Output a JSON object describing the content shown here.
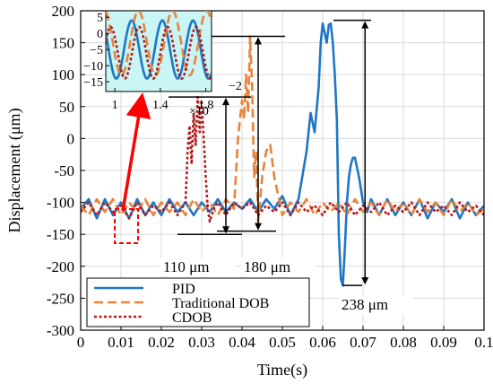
{
  "chart_data": {
    "type": "line",
    "xlabel": "Time(s)",
    "ylabel": "Displacement (μm)",
    "xlim": [
      0,
      0.1
    ],
    "ylim": [
      -300,
      200
    ],
    "xticks": [
      "0",
      "0.01",
      "0.02",
      "0.03",
      "0.04",
      "0.05",
      "0.06",
      "0.07",
      "0.08",
      "0.09",
      "0.1"
    ],
    "yticks": [
      "200",
      "150",
      "100",
      "50",
      "0",
      "-50",
      "-100",
      "-150",
      "-200",
      "-250",
      "-300"
    ],
    "ytick_values": [
      200,
      150,
      100,
      50,
      0,
      -50,
      -100,
      -150,
      -200,
      -250,
      -300
    ],
    "grid": true,
    "legend_position": "bottom-left",
    "series": [
      {
        "name": "PID",
        "color": "#1f77c4",
        "dash": "solid",
        "x": [
          0.0,
          0.002,
          0.004,
          0.006,
          0.008,
          0.01,
          0.012,
          0.014,
          0.016,
          0.018,
          0.02,
          0.022,
          0.024,
          0.026,
          0.028,
          0.03,
          0.032,
          0.034,
          0.036,
          0.038,
          0.04,
          0.042,
          0.044,
          0.046,
          0.048,
          0.05,
          0.052,
          0.054,
          0.056,
          0.057,
          0.058,
          0.059,
          0.0595,
          0.06,
          0.0605,
          0.061,
          0.0615,
          0.062,
          0.0625,
          0.063,
          0.0635,
          0.064,
          0.0645,
          0.065,
          0.0655,
          0.066,
          0.0665,
          0.067,
          0.0675,
          0.068,
          0.069,
          0.07,
          0.071,
          0.072,
          0.074,
          0.076,
          0.078,
          0.08,
          0.082,
          0.084,
          0.086,
          0.088,
          0.09,
          0.092,
          0.094,
          0.096,
          0.098,
          0.1
        ],
        "y": [
          -110,
          -95,
          -125,
          -95,
          -120,
          -100,
          -125,
          -95,
          -120,
          -100,
          -120,
          -95,
          -115,
          -100,
          -120,
          -100,
          -115,
          -95,
          -115,
          -100,
          -110,
          -95,
          -115,
          -95,
          -110,
          -90,
          -120,
          -95,
          -20,
          40,
          10,
          80,
          150,
          180,
          165,
          150,
          178,
          180,
          150,
          100,
          30,
          -150,
          -220,
          -230,
          -170,
          -100,
          -60,
          -40,
          -30,
          -30,
          -60,
          -100,
          -115,
          -95,
          -120,
          -95,
          -120,
          -100,
          -120,
          -95,
          -125,
          -100,
          -115,
          -95,
          -125,
          -100,
          -120,
          -105
        ]
      },
      {
        "name": "Traditional DOB",
        "color": "#e8843a",
        "dash": "dashed",
        "x": [
          0.0,
          0.002,
          0.004,
          0.006,
          0.008,
          0.01,
          0.012,
          0.014,
          0.016,
          0.018,
          0.02,
          0.022,
          0.024,
          0.026,
          0.028,
          0.03,
          0.032,
          0.034,
          0.036,
          0.038,
          0.039,
          0.04,
          0.0405,
          0.041,
          0.0415,
          0.042,
          0.0425,
          0.043,
          0.0435,
          0.044,
          0.045,
          0.046,
          0.047,
          0.048,
          0.05,
          0.052,
          0.054,
          0.056,
          0.058,
          0.06,
          0.062,
          0.064,
          0.066,
          0.068,
          0.07,
          0.072,
          0.074,
          0.076,
          0.078,
          0.08,
          0.082,
          0.084,
          0.086,
          0.088,
          0.09,
          0.092,
          0.094,
          0.096,
          0.098,
          0.1
        ],
        "y": [
          -105,
          -120,
          -95,
          -115,
          -95,
          -120,
          -100,
          -115,
          -95,
          -120,
          -100,
          -115,
          -100,
          -120,
          -95,
          -115,
          -100,
          -120,
          -95,
          -110,
          0,
          60,
          30,
          100,
          40,
          160,
          80,
          -60,
          -20,
          -130,
          -60,
          -20,
          -10,
          -60,
          -120,
          -100,
          -115,
          -95,
          -120,
          -100,
          -115,
          -100,
          -120,
          -95,
          -115,
          -100,
          -120,
          -95,
          -115,
          -100,
          -120,
          -95,
          -115,
          -100,
          -120,
          -95,
          -115,
          -100,
          -120,
          -110
        ]
      },
      {
        "name": "CDOB",
        "color": "#b01c1c",
        "dash": "dotted",
        "x": [
          0.0,
          0.002,
          0.004,
          0.006,
          0.008,
          0.01,
          0.012,
          0.014,
          0.016,
          0.018,
          0.02,
          0.022,
          0.024,
          0.026,
          0.0265,
          0.027,
          0.0275,
          0.028,
          0.0285,
          0.029,
          0.0295,
          0.03,
          0.0305,
          0.031,
          0.0315,
          0.032,
          0.033,
          0.034,
          0.036,
          0.038,
          0.04,
          0.042,
          0.044,
          0.046,
          0.048,
          0.05,
          0.052,
          0.054,
          0.056,
          0.058,
          0.06,
          0.062,
          0.064,
          0.066,
          0.068,
          0.07,
          0.072,
          0.074,
          0.076,
          0.078,
          0.08,
          0.082,
          0.084,
          0.086,
          0.088,
          0.09,
          0.092,
          0.094,
          0.096,
          0.098,
          0.1
        ],
        "y": [
          -115,
          -100,
          -120,
          -100,
          -115,
          -105,
          -125,
          -100,
          -120,
          -105,
          -115,
          -100,
          -120,
          -100,
          -20,
          20,
          -40,
          40,
          -10,
          65,
          10,
          60,
          0,
          -60,
          -110,
          -130,
          -110,
          -100,
          -120,
          -100,
          -110,
          -100,
          -120,
          -105,
          -115,
          -100,
          -120,
          -100,
          -115,
          -105,
          -120,
          -100,
          -115,
          -100,
          -120,
          -105,
          -115,
          -100,
          -120,
          -105,
          -115,
          -100,
          -120,
          -100,
          -115,
          -105,
          -120,
          -100,
          -115,
          -105,
          -120
        ]
      }
    ],
    "annotations": [
      {
        "text": "110 μm",
        "y_top": 65,
        "y_bottom": -150,
        "x": 0.036
      },
      {
        "text": "180 μm",
        "y_top": 160,
        "y_bottom": -145,
        "x": 0.044
      },
      {
        "text": "238 μm",
        "y_top": 185,
        "y_bottom": -230,
        "x": 0.0705
      }
    ],
    "inset": {
      "background": "#c9f5f5",
      "xticks": [
        "1",
        "1.4",
        "1.8"
      ],
      "xtick_values": [
        1.0,
        1.4,
        1.8
      ],
      "xlim": [
        0.92,
        1.85
      ],
      "yticks": [
        "5",
        "0",
        "−5",
        "−10",
        "−15"
      ],
      "ytick_values": [
        5,
        0,
        -5,
        -10,
        -15
      ],
      "ylim": [
        -18,
        7
      ],
      "exponent": "×10",
      "exponent_power": "−2"
    }
  }
}
